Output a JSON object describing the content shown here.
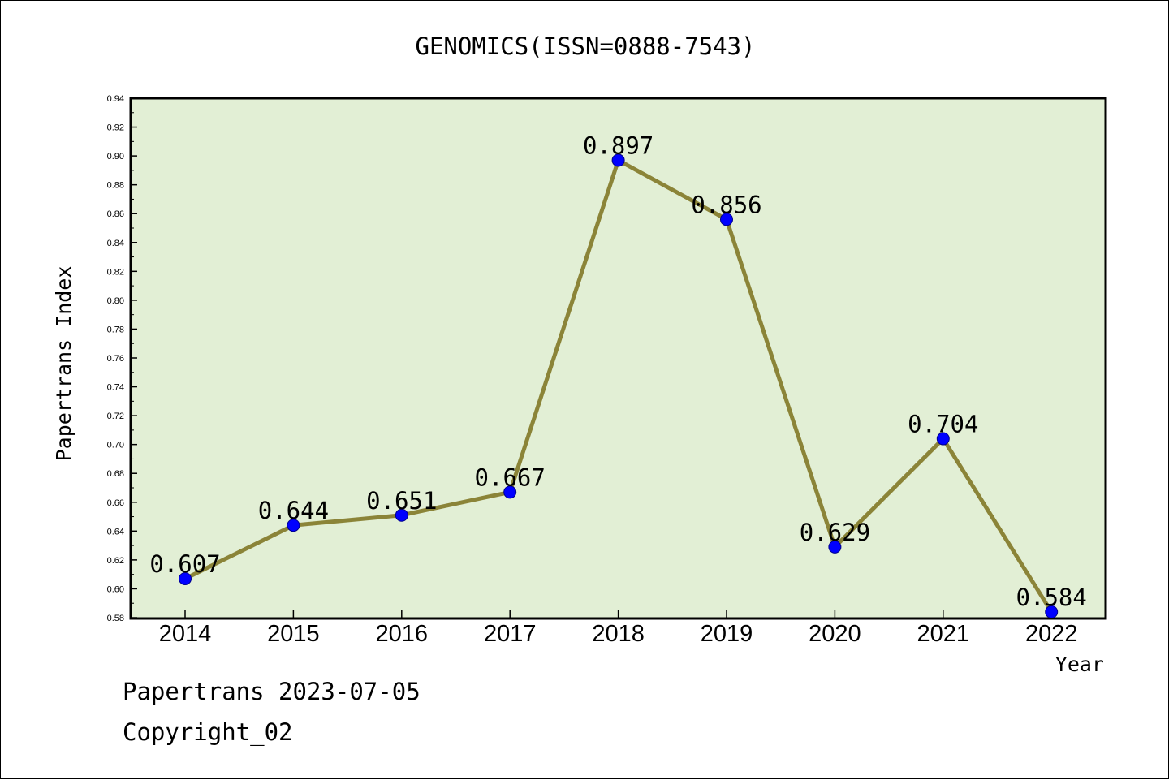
{
  "footer": {
    "line1": "Papertrans 2023-07-05",
    "line2": "Copyright_02"
  },
  "chart_data": {
    "type": "line",
    "title": "GENOMICS(ISSN=0888-7543)",
    "xlabel": "Year",
    "ylabel": "Papertrans Index",
    "categories": [
      "2014",
      "2015",
      "2016",
      "2017",
      "2018",
      "2019",
      "2020",
      "2021",
      "2022"
    ],
    "values": [
      0.607,
      0.644,
      0.651,
      0.667,
      0.897,
      0.856,
      0.629,
      0.704,
      0.584
    ],
    "data_labels": [
      "0.607",
      "0.644",
      "0.651",
      "0.667",
      "0.897",
      "0.856",
      "0.629",
      "0.704",
      "0.584"
    ],
    "ylim": [
      0.58,
      0.94
    ],
    "yticks": [
      "0.58",
      "0.60",
      "0.62",
      "0.64",
      "0.66",
      "0.68",
      "0.70",
      "0.72",
      "0.74",
      "0.76",
      "0.78",
      "0.80",
      "0.82",
      "0.84",
      "0.86",
      "0.88",
      "0.90",
      "0.92",
      "0.94"
    ],
    "grid": false,
    "colors": {
      "plot_background": "#e2efd5",
      "line": "#8b8438",
      "marker": "#0000ff"
    }
  }
}
